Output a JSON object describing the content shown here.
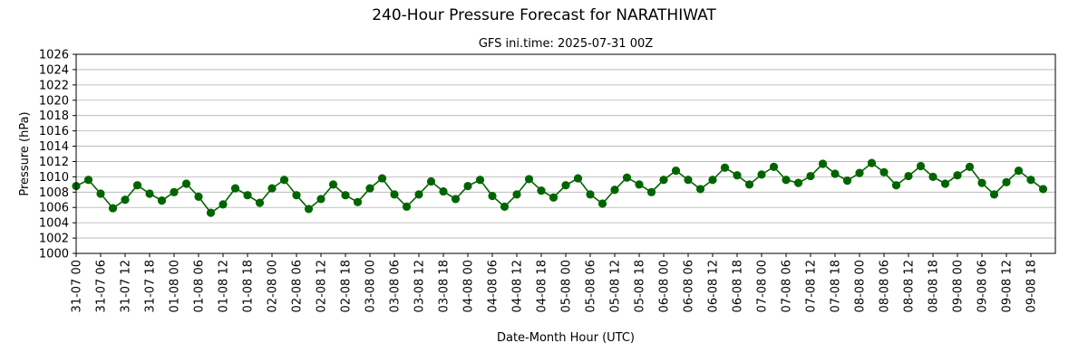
{
  "chart_data": {
    "type": "line",
    "title": "240-Hour Pressure Forecast for NARATHIWAT",
    "subtitle": "GFS ini.time: 2025-07-31 00Z",
    "xlabel": "Date-Month Hour (UTC)",
    "ylabel": "Pressure (hPa)",
    "ylim": [
      1000,
      1026
    ],
    "yticks": [
      1000,
      1002,
      1004,
      1006,
      1008,
      1010,
      1012,
      1014,
      1016,
      1018,
      1020,
      1022,
      1024,
      1026
    ],
    "xlim_hours": [
      0,
      240
    ],
    "xticks": [
      {
        "hour": 0,
        "label": "31-07 00"
      },
      {
        "hour": 6,
        "label": "31-07 06"
      },
      {
        "hour": 12,
        "label": "31-07 12"
      },
      {
        "hour": 18,
        "label": "31-07 18"
      },
      {
        "hour": 24,
        "label": "01-08 00"
      },
      {
        "hour": 30,
        "label": "01-08 06"
      },
      {
        "hour": 36,
        "label": "01-08 12"
      },
      {
        "hour": 42,
        "label": "01-08 18"
      },
      {
        "hour": 48,
        "label": "02-08 00"
      },
      {
        "hour": 54,
        "label": "02-08 06"
      },
      {
        "hour": 60,
        "label": "02-08 12"
      },
      {
        "hour": 66,
        "label": "02-08 18"
      },
      {
        "hour": 72,
        "label": "03-08 00"
      },
      {
        "hour": 78,
        "label": "03-08 06"
      },
      {
        "hour": 84,
        "label": "03-08 12"
      },
      {
        "hour": 90,
        "label": "03-08 18"
      },
      {
        "hour": 96,
        "label": "04-08 00"
      },
      {
        "hour": 102,
        "label": "04-08 06"
      },
      {
        "hour": 108,
        "label": "04-08 12"
      },
      {
        "hour": 114,
        "label": "04-08 18"
      },
      {
        "hour": 120,
        "label": "05-08 00"
      },
      {
        "hour": 126,
        "label": "05-08 06"
      },
      {
        "hour": 132,
        "label": "05-08 12"
      },
      {
        "hour": 138,
        "label": "05-08 18"
      },
      {
        "hour": 144,
        "label": "06-08 00"
      },
      {
        "hour": 150,
        "label": "06-08 06"
      },
      {
        "hour": 156,
        "label": "06-08 12"
      },
      {
        "hour": 162,
        "label": "06-08 18"
      },
      {
        "hour": 168,
        "label": "07-08 00"
      },
      {
        "hour": 174,
        "label": "07-08 06"
      },
      {
        "hour": 180,
        "label": "07-08 12"
      },
      {
        "hour": 186,
        "label": "07-08 18"
      },
      {
        "hour": 192,
        "label": "08-08 00"
      },
      {
        "hour": 198,
        "label": "08-08 06"
      },
      {
        "hour": 204,
        "label": "08-08 12"
      },
      {
        "hour": 210,
        "label": "08-08 18"
      },
      {
        "hour": 216,
        "label": "09-08 00"
      },
      {
        "hour": 222,
        "label": "09-08 06"
      },
      {
        "hour": 228,
        "label": "09-08 12"
      },
      {
        "hour": 234,
        "label": "09-08 18"
      }
    ],
    "x_step_hours": 3,
    "values": [
      1008.8,
      1009.6,
      1007.8,
      1005.9,
      1007.0,
      1008.9,
      1007.8,
      1006.9,
      1008.0,
      1009.1,
      1007.4,
      1005.3,
      1006.4,
      1008.5,
      1007.6,
      1006.6,
      1008.5,
      1009.6,
      1007.6,
      1005.8,
      1007.1,
      1009.0,
      1007.6,
      1006.7,
      1008.5,
      1009.8,
      1007.7,
      1006.1,
      1007.7,
      1009.4,
      1008.1,
      1007.1,
      1008.8,
      1009.6,
      1007.5,
      1006.1,
      1007.7,
      1009.7,
      1008.2,
      1007.3,
      1008.9,
      1009.8,
      1007.7,
      1006.5,
      1008.3,
      1009.9,
      1009.0,
      1008.0,
      1009.6,
      1010.8,
      1009.6,
      1008.4,
      1009.6,
      1011.2,
      1010.2,
      1009.0,
      1010.3,
      1011.3,
      1009.6,
      1009.2,
      1010.1,
      1011.7,
      1010.4,
      1009.5,
      1010.5,
      1011.8,
      1010.6,
      1008.9,
      1010.1,
      1011.4,
      1010.0,
      1009.1,
      1010.2,
      1011.3,
      1009.2,
      1007.7,
      1009.3,
      1010.8,
      1009.6,
      1008.4
    ],
    "line_color": "#006400",
    "marker_color": "#006400",
    "grid": "horizontal",
    "legend": "none"
  }
}
